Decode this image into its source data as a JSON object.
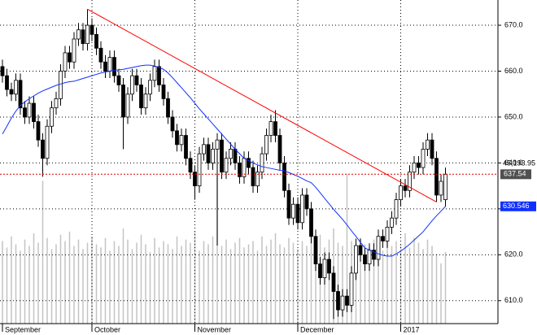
{
  "chart_data": {
    "type": "candlestick",
    "categories": [
      "September",
      null,
      null,
      null,
      null,
      null,
      null,
      null,
      null,
      null,
      null,
      null,
      null,
      null,
      null,
      null,
      null,
      null,
      null,
      null,
      "October",
      null,
      null,
      null,
      null,
      null,
      null,
      null,
      null,
      null,
      null,
      null,
      null,
      null,
      null,
      null,
      null,
      null,
      null,
      null,
      null,
      null,
      null,
      "November",
      null,
      null,
      null,
      null,
      null,
      null,
      null,
      null,
      null,
      null,
      null,
      null,
      null,
      null,
      null,
      null,
      null,
      null,
      null,
      null,
      null,
      null,
      "December",
      null,
      null,
      null,
      null,
      null,
      null,
      null,
      null,
      null,
      null,
      null,
      null,
      null,
      null,
      null,
      null,
      null,
      null,
      null,
      null,
      null,
      null,
      "2017",
      null,
      null,
      null,
      null,
      null,
      null,
      null,
      null,
      null,
      null
    ],
    "open": [
      661,
      659,
      656,
      655,
      658,
      652,
      650,
      653,
      649,
      645,
      641,
      648,
      652,
      654,
      660,
      664,
      662,
      667,
      669,
      666,
      670,
      668,
      665,
      662,
      660,
      663,
      659,
      657,
      650,
      655,
      659,
      657,
      652,
      655,
      658,
      661,
      657,
      654,
      650,
      647,
      644,
      646,
      641,
      638,
      635,
      642,
      644,
      640,
      643,
      645,
      638,
      641,
      643,
      640,
      637,
      641,
      639,
      635,
      638,
      642,
      646,
      649,
      646,
      640,
      634,
      628,
      631,
      627,
      633,
      630,
      624,
      618,
      615,
      619,
      616,
      612,
      608,
      611,
      609,
      616,
      622,
      620,
      618,
      621,
      619,
      624,
      623,
      626,
      628,
      632,
      635,
      634,
      638,
      640,
      639,
      643,
      645,
      641,
      633,
      632
    ],
    "high": [
      662.5,
      660.5,
      657.5,
      659.5,
      659.5,
      653.5,
      654.5,
      654.5,
      650.5,
      646.5,
      649.5,
      653.5,
      655.5,
      661.5,
      665.5,
      665.5,
      668.5,
      670.5,
      670.5,
      673.5,
      671.5,
      669.5,
      666.5,
      663.5,
      664.5,
      664.5,
      660.5,
      658.5,
      656.5,
      660.5,
      660.5,
      658.5,
      656.5,
      659.5,
      662.5,
      662.5,
      658.5,
      655.5,
      651.5,
      648.5,
      647.5,
      647.5,
      642.5,
      639.5,
      643.5,
      645.5,
      645.5,
      644.5,
      646.5,
      646.5,
      642.5,
      644.5,
      644.5,
      641.5,
      642.5,
      642.5,
      640.5,
      639.5,
      643.5,
      647.5,
      650.5,
      651.5,
      647.5,
      641.5,
      635.5,
      632.5,
      632.5,
      634.5,
      634.5,
      631.5,
      625.5,
      619.5,
      620.5,
      620.5,
      617.5,
      613.5,
      612.5,
      612.5,
      617.5,
      623.5,
      623.5,
      621.5,
      622.5,
      622.5,
      625.5,
      625.5,
      627.5,
      629.5,
      633.5,
      636.5,
      636.5,
      639.5,
      641.5,
      641.5,
      644.5,
      646.5,
      646.5,
      642.5,
      637.5,
      639
    ],
    "low": [
      657.5,
      654.5,
      653.5,
      653.5,
      650.5,
      648.5,
      648.5,
      647.5,
      643.5,
      637,
      639.5,
      646.5,
      650.5,
      652.5,
      658.5,
      660.5,
      660.5,
      665.5,
      664.5,
      664.5,
      666.5,
      663.5,
      660.5,
      658.5,
      658.5,
      657.5,
      655.5,
      643,
      648.5,
      653.5,
      655.5,
      650.5,
      650.5,
      653.5,
      656.5,
      655.5,
      652.5,
      648.5,
      645.5,
      642.5,
      642.5,
      639.5,
      636.5,
      632,
      633.5,
      640.5,
      638.5,
      638.5,
      622,
      636.5,
      636.5,
      639.5,
      638.5,
      635.5,
      635.5,
      637.5,
      633.5,
      633.5,
      636.5,
      640.5,
      644.5,
      644.5,
      638.5,
      632.5,
      626.5,
      626.5,
      625.5,
      625.5,
      628.5,
      622.5,
      616.5,
      613.5,
      613.5,
      614.5,
      606,
      606.5,
      606.5,
      607.5,
      607.5,
      614.5,
      618.5,
      616.5,
      616.5,
      617.5,
      617.5,
      621.5,
      621.5,
      624.5,
      626.5,
      630.5,
      632.5,
      632.5,
      636.5,
      637.5,
      637.5,
      641.5,
      639.5,
      631.5,
      631.5,
      630.5
    ],
    "close": [
      659,
      656,
      655,
      658,
      652,
      650,
      653,
      649,
      645,
      641,
      648,
      652,
      654,
      660,
      664,
      662,
      667,
      669,
      666,
      670,
      668,
      665,
      662,
      660,
      663,
      659,
      657,
      650,
      655,
      659,
      657,
      652,
      655,
      658,
      661,
      657,
      654,
      650,
      647,
      644,
      646,
      641,
      638,
      635,
      642,
      644,
      640,
      643,
      645,
      638,
      641,
      643,
      640,
      637,
      641,
      639,
      635,
      638,
      642,
      646,
      649,
      646,
      640,
      634,
      628,
      631,
      627,
      633,
      630,
      624,
      618,
      615,
      619,
      616,
      612,
      608,
      611,
      609,
      616,
      622,
      620,
      618,
      621,
      619,
      624,
      623,
      626,
      628,
      632,
      635,
      634,
      638,
      640,
      639,
      643,
      645,
      641,
      633,
      636,
      637.54
    ],
    "color": "#000000",
    "ma": {
      "color": "#1030ff",
      "values": [
        646.3,
        648,
        649.8,
        651.3,
        652.5,
        653.3,
        654,
        654.6,
        655.2,
        655.7,
        656.1,
        656.5,
        656.9,
        657.2,
        657.5,
        657.7,
        657.8,
        658.1,
        658.4,
        658.7,
        659,
        659.3,
        659.6,
        659.8,
        660,
        660.2,
        660.3,
        660.4,
        660.6,
        660.8,
        661,
        661.2,
        661.3,
        661.3,
        661.1,
        660.8,
        660.4,
        659.6,
        658.6,
        657.5,
        656.4,
        655.3,
        654.2,
        653,
        651.8,
        650.7,
        649.6,
        648.5,
        647.4,
        646.3,
        645.2,
        644.1,
        643,
        642,
        641,
        640.5,
        640,
        639.6,
        639.2,
        639,
        638.8,
        638.6,
        638.4,
        638.3,
        637.9,
        637.5,
        637.1,
        636.6,
        636.1,
        635.7,
        634.7,
        633.5,
        632.3,
        631.1,
        629.9,
        628.8,
        627.7,
        626.5,
        625.2,
        624,
        622.7,
        621.5,
        621,
        620.6,
        620.2,
        619.9,
        619.7,
        619.7,
        620.2,
        620.8,
        621.5,
        622.3,
        623.2,
        624.1,
        625,
        626.2,
        627.4,
        628.5,
        629.5,
        630.546
      ]
    },
    "volume": {
      "color": "#c4c4c4",
      "y2lim": [
        0,
        204000
      ],
      "last_label": "45,193.95",
      "values": [
        52000,
        48000,
        55000,
        50000,
        46000,
        53000,
        49000,
        57000,
        51000,
        90000,
        54000,
        47000,
        50000,
        56000,
        52000,
        58000,
        49000,
        53000,
        47000,
        51000,
        55000,
        50000,
        48000,
        54000,
        46000,
        52000,
        49000,
        60000,
        53000,
        47000,
        51000,
        56000,
        50000,
        45000,
        54000,
        48000,
        52000,
        50000,
        47000,
        55000,
        49000,
        53000,
        51000,
        58000,
        46000,
        52000,
        50000,
        55000,
        94000,
        49000,
        53000,
        47000,
        51000,
        54000,
        48000,
        50000,
        52000,
        46000,
        55000,
        49000,
        53000,
        57000,
        50000,
        48000,
        54000,
        51000,
        47000,
        52000,
        49000,
        55000,
        50000,
        56000,
        48000,
        53000,
        60000,
        51000,
        49000,
        94000,
        52000,
        47000,
        54000,
        50000,
        48000,
        53000,
        51000,
        46000,
        55000,
        49000,
        52000,
        50000,
        57000,
        48000,
        54000,
        51000,
        47000,
        53000,
        49000,
        44000,
        38000,
        45193.95
      ]
    },
    "trendline": {
      "color": "#ff0000",
      "x": [
        19,
        97
      ],
      "y": [
        673.5,
        631.5
      ]
    },
    "ylim": [
      605,
      675.5
    ],
    "yticks": [
      {
        "value": 610,
        "label": "610.0"
      },
      {
        "value": 620,
        "label": "620.0"
      },
      {
        "value": 630,
        "label": "630.0"
      },
      {
        "value": 640,
        "label": "640.0"
      },
      {
        "value": 650,
        "label": "650.0"
      },
      {
        "value": 660,
        "label": "660.0"
      },
      {
        "value": 670,
        "label": "670.0"
      }
    ],
    "grid": true
  }
}
